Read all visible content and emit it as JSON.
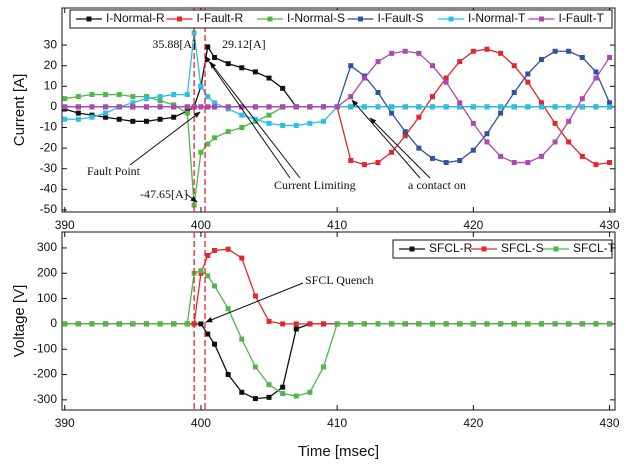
{
  "chart_data": [
    {
      "type": "line",
      "ylabel": "Current [A]",
      "x": [
        390,
        391,
        392,
        393,
        394,
        395,
        396,
        397,
        398,
        399,
        399.5,
        400,
        400.5,
        401,
        402,
        403,
        404,
        405,
        406,
        407,
        408,
        409,
        410,
        411,
        412,
        413,
        414,
        415,
        416,
        417,
        418,
        419,
        420,
        421,
        422,
        423,
        424,
        425,
        426,
        427,
        428,
        429,
        430
      ],
      "xlim": [
        389.8,
        430.4
      ],
      "xticks": [
        390,
        400,
        410,
        420,
        430
      ],
      "ylim": [
        -51,
        48
      ],
      "yticks": [
        -50,
        -40,
        -30,
        -20,
        -10,
        0,
        10,
        20,
        30
      ],
      "grid": false,
      "legend": "top",
      "vlines": [
        399.5,
        400.3
      ],
      "annotations": [
        "35.88[A]",
        "29.12[A]",
        "-47.65[A]",
        "Fault Point",
        "Current Limiting",
        "a contact on"
      ],
      "series": [
        {
          "name": "I-Normal-R",
          "color": "#111111",
          "values": [
            -1,
            -3,
            -4,
            -5,
            -6,
            -7,
            -7,
            -6,
            -5,
            -2,
            0,
            10,
            29.12,
            24,
            21,
            19,
            17,
            14,
            9,
            0,
            0,
            0,
            0,
            0,
            0,
            0,
            0,
            0,
            0,
            0,
            0,
            0,
            0,
            0,
            0,
            0,
            0,
            0,
            0,
            0,
            0,
            0,
            0
          ]
        },
        {
          "name": "I-Fault-R",
          "color": "#e3262b",
          "values": [
            0,
            0,
            0,
            0,
            0,
            0,
            0,
            0,
            0,
            0,
            0,
            0,
            0,
            0,
            0,
            0,
            0,
            0,
            0,
            0,
            0,
            0,
            0,
            -26,
            -28,
            -27,
            -22,
            -14,
            -5,
            5,
            14,
            22,
            27,
            28,
            26,
            20,
            12,
            2,
            -8,
            -17,
            -24,
            -28,
            -27
          ]
        },
        {
          "name": "I-Normal-S",
          "color": "#4fb848",
          "values": [
            4,
            5,
            6,
            6,
            6,
            5,
            5,
            3,
            1,
            -3,
            -47.65,
            -22,
            -18,
            -15,
            -12,
            -10,
            -7,
            -4,
            0,
            0,
            0,
            0,
            0,
            0,
            0,
            0,
            0,
            0,
            0,
            0,
            0,
            0,
            0,
            0,
            0,
            0,
            0,
            0,
            0,
            0,
            0,
            0,
            0
          ]
        },
        {
          "name": "I-Fault-S",
          "color": "#2f52a3",
          "values": [
            0,
            0,
            0,
            0,
            0,
            0,
            0,
            0,
            0,
            0,
            0,
            0,
            0,
            0,
            0,
            0,
            0,
            0,
            0,
            0,
            0,
            0,
            0,
            20,
            15,
            7,
            -3,
            -12,
            -20,
            -25,
            -27,
            -26,
            -21,
            -13,
            -3,
            7,
            16,
            23,
            27,
            27,
            24,
            17,
            2
          ]
        },
        {
          "name": "I-Normal-T",
          "color": "#2cbfe3",
          "values": [
            -6,
            -6,
            -5,
            -3,
            0,
            2,
            4,
            5,
            6,
            6,
            35.88,
            10,
            5,
            2,
            -1,
            -4,
            -6,
            -8,
            -9,
            -9,
            -8,
            -7,
            0,
            0,
            0,
            0,
            0,
            0,
            0,
            0,
            0,
            0,
            0,
            0,
            0,
            0,
            0,
            0,
            0,
            0,
            0,
            0,
            0
          ]
        },
        {
          "name": "I-Fault-T",
          "color": "#ad48ae",
          "values": [
            0,
            0,
            0,
            0,
            0,
            0,
            0,
            0,
            0,
            0,
            0,
            0,
            0,
            0,
            0,
            0,
            0,
            0,
            0,
            0,
            0,
            0,
            0,
            5,
            14,
            22,
            26,
            27,
            26,
            20,
            12,
            2,
            -8,
            -17,
            -24,
            -27,
            -27,
            -24,
            -17,
            -7,
            4,
            14,
            24
          ]
        }
      ]
    },
    {
      "type": "line",
      "ylabel": "Voltage [V]",
      "xlabel": "Time [msec]",
      "x": [
        390,
        391,
        392,
        393,
        394,
        395,
        396,
        397,
        398,
        399,
        399.5,
        400,
        400.5,
        401,
        402,
        403,
        404,
        405,
        406,
        407,
        408,
        409,
        410,
        411,
        412,
        413,
        414,
        415,
        416,
        417,
        418,
        419,
        420,
        421,
        422,
        423,
        424,
        425,
        426,
        427,
        428,
        429,
        430
      ],
      "xlim": [
        389.8,
        430.4
      ],
      "xticks": [
        390,
        400,
        410,
        420,
        430
      ],
      "ylim": [
        -340,
        363
      ],
      "yticks": [
        -300,
        -200,
        -100,
        0,
        100,
        200,
        300
      ],
      "grid": false,
      "legend": "top right",
      "vlines": [
        399.5,
        400.3
      ],
      "annotations": [
        "SFCL Quench"
      ],
      "series": [
        {
          "name": "SFCL-R",
          "color": "#111111",
          "values": [
            0,
            0,
            0,
            0,
            0,
            0,
            0,
            0,
            0,
            0,
            0,
            0,
            -40,
            -80,
            -200,
            -270,
            -295,
            -290,
            -250,
            -20,
            0,
            0,
            0,
            0,
            0,
            0,
            0,
            0,
            0,
            0,
            0,
            0,
            0,
            0,
            0,
            0,
            0,
            0,
            0,
            0,
            0,
            0,
            0
          ]
        },
        {
          "name": "SFCL-S",
          "color": "#e3262b",
          "values": [
            0,
            0,
            0,
            0,
            0,
            0,
            0,
            0,
            0,
            0,
            0,
            200,
            270,
            290,
            295,
            260,
            110,
            10,
            0,
            0,
            0,
            0,
            0,
            0,
            0,
            0,
            0,
            0,
            0,
            0,
            0,
            0,
            0,
            0,
            0,
            0,
            0,
            0,
            0,
            0,
            0,
            0,
            0
          ]
        },
        {
          "name": "SFCL-T",
          "color": "#4fb848",
          "values": [
            0,
            0,
            0,
            0,
            0,
            0,
            0,
            0,
            0,
            0,
            200,
            210,
            190,
            150,
            60,
            -60,
            -170,
            -240,
            -275,
            -285,
            -270,
            -170,
            0,
            0,
            0,
            0,
            0,
            0,
            0,
            0,
            0,
            0,
            0,
            0,
            0,
            0,
            0,
            0,
            0,
            0,
            0,
            0,
            0
          ]
        }
      ]
    }
  ]
}
